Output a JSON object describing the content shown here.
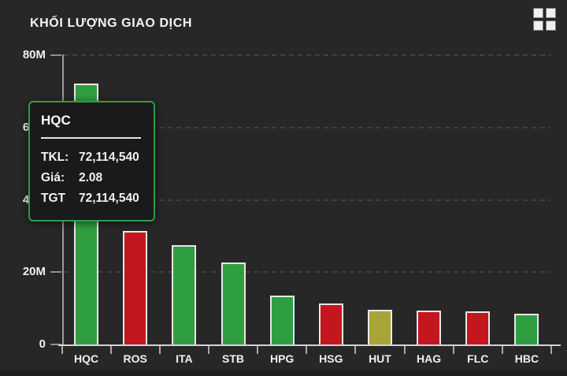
{
  "header": {
    "title": "KHỐI LƯỢNG GIAO DỊCH"
  },
  "icons": {
    "grid_menu": "grid-menu-icon"
  },
  "colors": {
    "background": "#272727",
    "green": "#2f9e40",
    "red": "#c4161e",
    "olive": "#a8a437",
    "bar_border": "#e8e8e8",
    "axis": "#9a9a9a",
    "grid": "#404040",
    "tooltip_border": "#2f9e44",
    "tooltip_bg": "#1a1a1a",
    "text": "#f2f2f2"
  },
  "chart_data": {
    "type": "bar",
    "title": "KHỐI LƯỢNG GIAO DỊCH",
    "categories": [
      "HQC",
      "ROS",
      "ITA",
      "STB",
      "HPG",
      "HSG",
      "HUT",
      "HAG",
      "FLC",
      "HBC"
    ],
    "values": [
      72114540,
      31400000,
      27500000,
      22600000,
      13500000,
      11300000,
      9700000,
      9300000,
      9200000,
      8500000
    ],
    "bar_colors": [
      "green",
      "red",
      "green",
      "green",
      "green",
      "red",
      "olive",
      "red",
      "red",
      "green"
    ],
    "ylim": [
      0,
      80000000
    ],
    "yticks": [
      {
        "value": 0,
        "label": "0"
      },
      {
        "value": 20000000,
        "label": "20M"
      },
      {
        "value": 40000000,
        "label": "40M"
      },
      {
        "value": 60000000,
        "label": "60M"
      },
      {
        "value": 80000000,
        "label": "80M"
      }
    ],
    "grid": "dashed-horizontal",
    "legend": "none"
  },
  "tooltip": {
    "for_category": "HQC",
    "title": "HQC",
    "rows": [
      {
        "label": "TKL:",
        "value": "72,114,540"
      },
      {
        "label": "Giá:",
        "value": "2.08"
      },
      {
        "label": "TGT",
        "value": "72,114,540"
      }
    ]
  }
}
